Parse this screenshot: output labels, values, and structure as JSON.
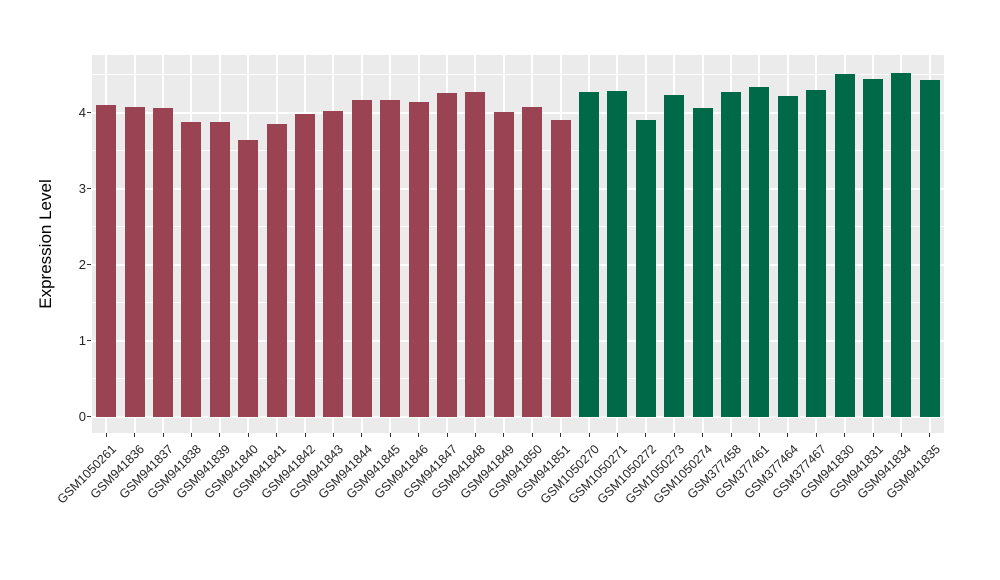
{
  "chart_data": {
    "type": "bar",
    "title": "",
    "xlabel": "",
    "ylabel": "Expression Level",
    "ylim": [
      0,
      4.76
    ],
    "yticks": [
      0,
      1,
      2,
      3,
      4
    ],
    "minor_gridlines": [
      0.5,
      1.5,
      2.5,
      3.5,
      4.5
    ],
    "grid": "on",
    "legend": "none",
    "panel_background": "#EBEBEB",
    "gridline_color": "#FFFFFF",
    "categories": [
      "GSM1050261",
      "GSM941836",
      "GSM941837",
      "GSM941838",
      "GSM941839",
      "GSM941840",
      "GSM941841",
      "GSM941842",
      "GSM941843",
      "GSM941844",
      "GSM941845",
      "GSM941846",
      "GSM941847",
      "GSM941848",
      "GSM941849",
      "GSM941850",
      "GSM941851",
      "GSM1050270",
      "GSM1050271",
      "GSM1050272",
      "GSM1050273",
      "GSM1050274",
      "GSM377458",
      "GSM377461",
      "GSM377464",
      "GSM377467",
      "GSM941830",
      "GSM941831",
      "GSM941834",
      "GSM941835"
    ],
    "values": [
      4.1,
      4.08,
      4.06,
      3.88,
      3.88,
      3.64,
      3.85,
      3.99,
      4.03,
      4.17,
      4.17,
      4.15,
      4.26,
      4.28,
      4.01,
      4.08,
      3.91,
      4.28,
      4.29,
      3.91,
      4.24,
      4.07,
      4.27,
      4.34,
      4.23,
      4.3,
      4.51,
      4.45,
      4.53,
      4.44
    ],
    "color_groups": [
      {
        "name": "left-group",
        "color": "#9A4352",
        "from": 0,
        "to": 16
      },
      {
        "name": "right-group",
        "color": "#006A48",
        "from": 17,
        "to": 29
      }
    ]
  }
}
